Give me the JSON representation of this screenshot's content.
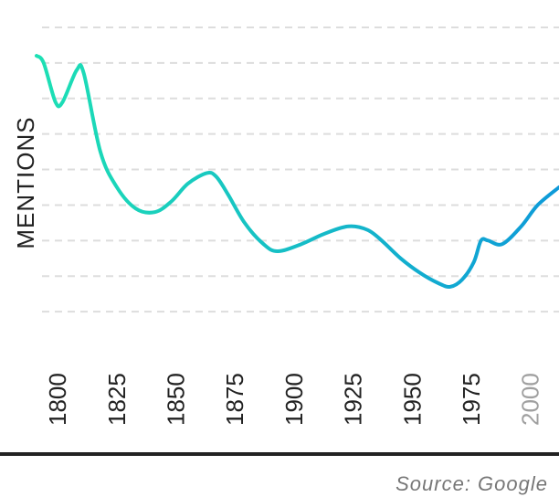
{
  "chart_data": {
    "type": "line",
    "title": "",
    "xlabel": "",
    "ylabel": "MENTIONS",
    "x_ticks": [
      "1800",
      "1825",
      "1850",
      "1875",
      "1900",
      "1925",
      "1950",
      "1975",
      "2000"
    ],
    "xlim": [
      1798,
      2019
    ],
    "ylim": [
      0,
      9
    ],
    "grid": true,
    "series": [
      {
        "x": [
          1798,
          1801,
          1806,
          1809,
          1815,
          1818,
          1825,
          1832,
          1840,
          1848,
          1855,
          1862,
          1870,
          1874,
          1879,
          1886,
          1894,
          1900,
          1910,
          1920,
          1930,
          1938,
          1944,
          1952,
          1960,
          1968,
          1973,
          1978,
          1983,
          1986,
          1989,
          1995,
          2003,
          2010,
          2019
        ],
        "values": [
          8.2,
          8.0,
          6.9,
          6.9,
          7.8,
          7.7,
          5.5,
          4.5,
          3.9,
          3.8,
          4.1,
          4.6,
          4.9,
          4.8,
          4.3,
          3.5,
          2.9,
          2.7,
          2.9,
          3.2,
          3.4,
          3.3,
          3.0,
          2.5,
          2.1,
          1.8,
          1.7,
          1.9,
          2.4,
          3.0,
          3.0,
          2.9,
          3.4,
          4.0,
          4.5
        ]
      }
    ],
    "colors": {
      "line_start": "#1de0b4",
      "line_end": "#0e9ad9",
      "grid": "#dddddd",
      "axis": "#222222"
    },
    "source": "Source: Google"
  }
}
